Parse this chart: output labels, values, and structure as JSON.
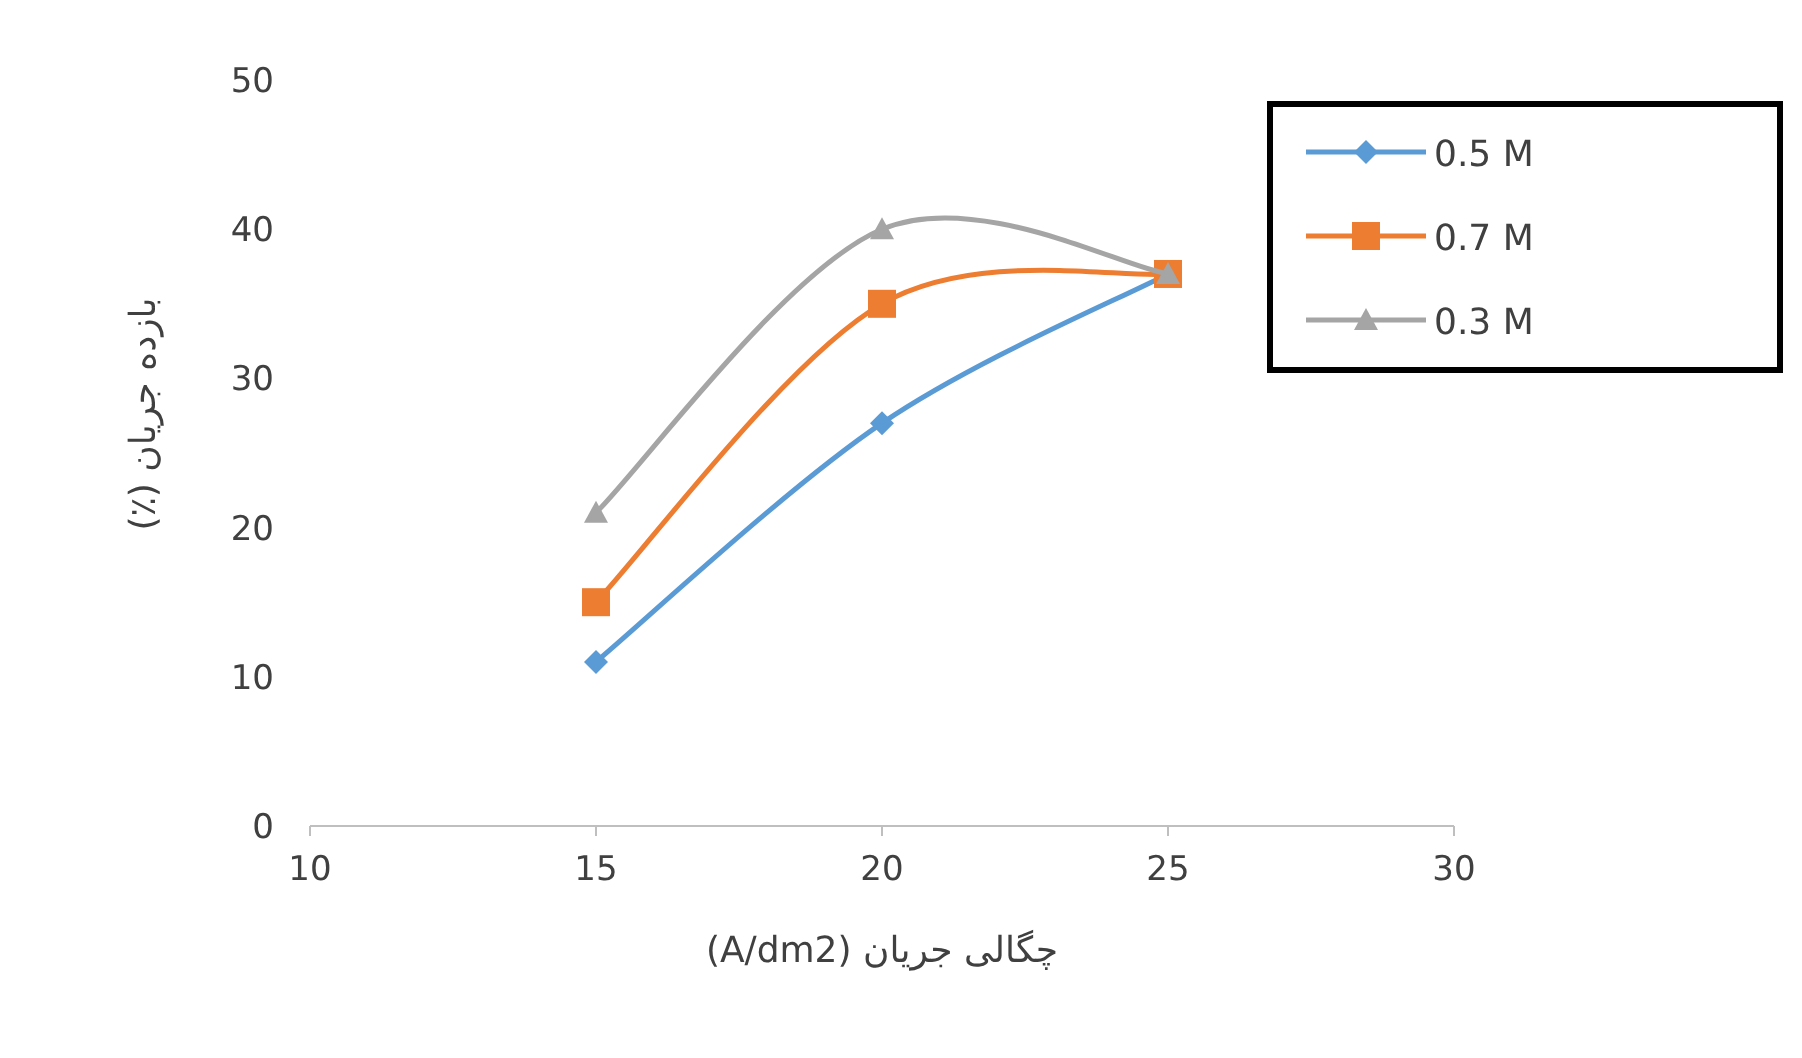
{
  "chart_data": {
    "type": "line",
    "xlabel": "چگالی جریان (A/dm2)",
    "ylabel": "بازده جریان (٪)",
    "x": [
      15,
      20,
      25
    ],
    "xlim": [
      10,
      30
    ],
    "xticks": [
      10,
      15,
      20,
      25,
      30
    ],
    "ylim": [
      0,
      50
    ],
    "yticks": [
      0,
      10,
      20,
      30,
      40,
      50
    ],
    "legend": "top right",
    "grid": false,
    "series": [
      {
        "name": "0.5 M",
        "color": "#5b9bd5",
        "marker": "diamond",
        "values": [
          11,
          27,
          37
        ]
      },
      {
        "name": "0.7 M",
        "color": "#ed7d31",
        "marker": "square",
        "values": [
          15,
          35,
          37
        ]
      },
      {
        "name": "0.3 M",
        "color": "#a5a5a5",
        "marker": "triangle",
        "values": [
          21,
          40,
          37
        ]
      }
    ]
  }
}
